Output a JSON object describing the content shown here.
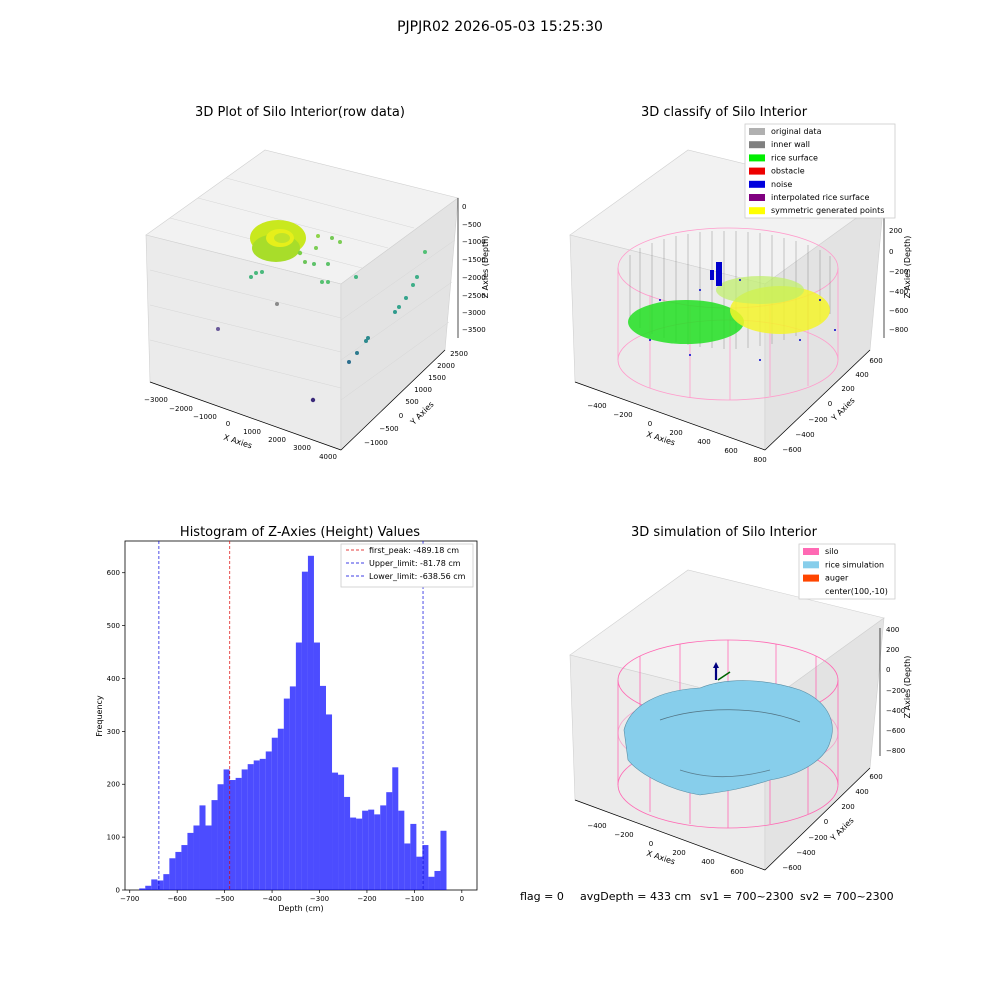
{
  "suptitle": "PJPJR02 2026-05-03 15:25:30",
  "panels": {
    "raw": {
      "title": "3D Plot of Silo Interior(row data)",
      "xlabel": "X Axies",
      "ylabel": "Y Axies",
      "zlabel": "Z Axies (Depth)",
      "xticks": [
        "−3000",
        "−2000",
        "−1000",
        "0",
        "1000",
        "2000",
        "3000",
        "4000"
      ],
      "yticks": [
        "−1000",
        "−500",
        "0",
        "500",
        "1000",
        "1500",
        "2000",
        "2500"
      ],
      "zticks": [
        "0",
        "−500",
        "−1000",
        "−1500",
        "−2000",
        "−2500",
        "−3000",
        "−3500"
      ]
    },
    "classify": {
      "title": "3D classify of Silo Interior",
      "xlabel": "X Axies",
      "ylabel": "Y Axies",
      "zlabel": "Z Axies (Depth)",
      "xticks": [
        "−400",
        "−200",
        "0",
        "200",
        "400",
        "600",
        "800"
      ],
      "yticks": [
        "−600",
        "−400",
        "−200",
        "0",
        "200",
        "400",
        "600"
      ],
      "zticks": [
        "200",
        "0",
        "−200",
        "−400",
        "−600",
        "−800"
      ],
      "legend": [
        {
          "label": "original data",
          "color": "#b0b0b0"
        },
        {
          "label": "inner wall",
          "color": "#808080"
        },
        {
          "label": "rice surface",
          "color": "#00ee00"
        },
        {
          "label": "obstacle",
          "color": "#ee0000"
        },
        {
          "label": "noise",
          "color": "#0000dd"
        },
        {
          "label": "interpolated rice surface",
          "color": "#800080"
        },
        {
          "label": "symmetric generated points",
          "color": "#ffff00"
        }
      ]
    },
    "simulation": {
      "title": "3D simulation of Silo Interior",
      "xlabel": "X Axies",
      "ylabel": "Y Axies",
      "zlabel": "Z Axies (Depth)",
      "xticks": [
        "−400",
        "−200",
        "0",
        "200",
        "400",
        "600"
      ],
      "yticks": [
        "−600",
        "−400",
        "−200",
        "0",
        "200",
        "400",
        "600"
      ],
      "zticks": [
        "400",
        "200",
        "0",
        "−200",
        "−400",
        "−600",
        "−800"
      ],
      "legend": [
        {
          "label": "silo",
          "color": "#ff69b4"
        },
        {
          "label": "rice simulation",
          "color": "#87ceeb"
        },
        {
          "label": "auger",
          "color": "#ff4500"
        },
        {
          "label": "center(100,-10)",
          "color": ""
        }
      ]
    }
  },
  "status": {
    "flag": "flag = 0",
    "avg_depth": "avgDepth = 433 cm",
    "sv1": "sv1 = 700~2300",
    "sv2": "sv2 = 700~2300"
  },
  "chart_data": {
    "type": "bar",
    "title": "Histogram of Z-Axies (Height) Values",
    "xlabel": "Depth (cm)",
    "ylabel": "Frequency",
    "xlim": [
      -710,
      32
    ],
    "ylim": [
      0,
      660
    ],
    "xticks": [
      -700,
      -600,
      -500,
      -400,
      -300,
      -200,
      -100,
      0
    ],
    "yticks": [
      0,
      100,
      200,
      300,
      400,
      500,
      600
    ],
    "bar_color": "#0000ff",
    "bin_start": -680,
    "bin_width": 12.7,
    "values": [
      3,
      8,
      20,
      18,
      30,
      60,
      72,
      85,
      108,
      122,
      160,
      122,
      170,
      200,
      228,
      208,
      212,
      228,
      238,
      245,
      248,
      262,
      288,
      305,
      362,
      385,
      468,
      602,
      632,
      468,
      386,
      332,
      222,
      218,
      176,
      137,
      135,
      150,
      152,
      143,
      160,
      185,
      232,
      150,
      88,
      125,
      63,
      85,
      25,
      36,
      112
    ],
    "lines": [
      {
        "label": "first_peak: -489.18 cm",
        "x": -489.18,
        "color": "#dd0000"
      },
      {
        "label": "Upper_limit: -81.78 cm",
        "x": -81.78,
        "color": "#0000dd"
      },
      {
        "label": "Lower_limit: -638.56 cm",
        "x": -638.56,
        "color": "#0000dd"
      }
    ]
  }
}
